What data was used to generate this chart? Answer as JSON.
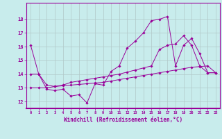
{
  "xlabel": "Windchill (Refroidissement éolien,°C)",
  "background_color": "#c8ecec",
  "line_color": "#990099",
  "grid_color": "#b0c8c8",
  "xlim": [
    -0.5,
    23.5
  ],
  "ylim": [
    11.5,
    19.2
  ],
  "xticks": [
    0,
    1,
    2,
    3,
    4,
    5,
    6,
    7,
    8,
    9,
    10,
    11,
    12,
    13,
    14,
    15,
    16,
    17,
    18,
    19,
    20,
    21,
    22,
    23
  ],
  "yticks": [
    12,
    13,
    14,
    15,
    16,
    17,
    18
  ],
  "series": [
    [
      16.1,
      14.0,
      12.9,
      12.8,
      12.9,
      12.4,
      12.5,
      11.9,
      13.3,
      13.2,
      14.2,
      14.6,
      15.9,
      16.4,
      17.0,
      17.9,
      18.0,
      18.2,
      14.6,
      16.1,
      16.6,
      15.5,
      14.1,
      14.1
    ],
    [
      14.0,
      14.0,
      13.2,
      13.1,
      13.2,
      13.4,
      13.5,
      13.6,
      13.7,
      13.8,
      13.9,
      14.0,
      14.15,
      14.3,
      14.45,
      14.6,
      15.8,
      16.1,
      16.2,
      16.8,
      16.1,
      14.6,
      14.1,
      14.1
    ],
    [
      13.0,
      13.0,
      13.0,
      13.1,
      13.15,
      13.2,
      13.25,
      13.3,
      13.35,
      13.4,
      13.5,
      13.6,
      13.7,
      13.8,
      13.9,
      14.0,
      14.1,
      14.2,
      14.3,
      14.4,
      14.5,
      14.55,
      14.6,
      14.1
    ]
  ]
}
